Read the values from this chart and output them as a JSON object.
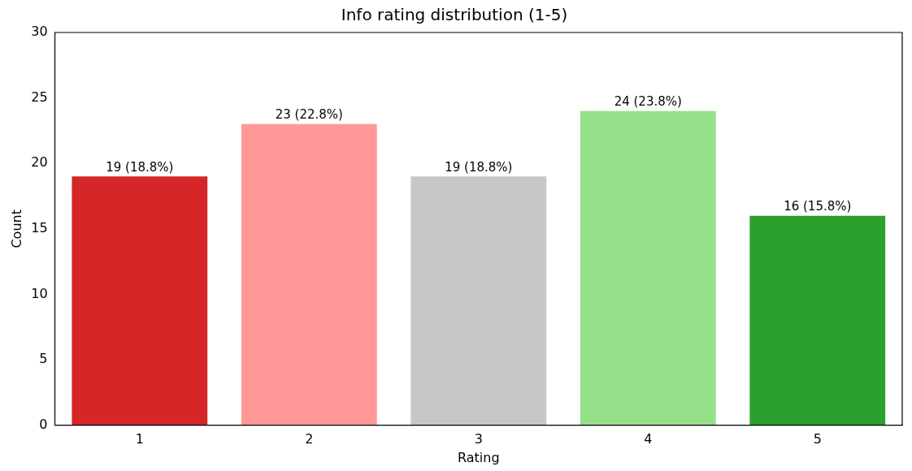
{
  "chart_data": {
    "type": "bar",
    "title": "Info rating distribution (1-5)",
    "xlabel": "Rating",
    "ylabel": "Count",
    "categories": [
      "1",
      "2",
      "3",
      "4",
      "5"
    ],
    "values": [
      19,
      23,
      19,
      24,
      16
    ],
    "colors": [
      "#d62728",
      "#ff9896",
      "#c7c7c7",
      "#98df8a",
      "#2ca02c"
    ],
    "value_labels": [
      "19 (18.8%)",
      "23 (22.8%)",
      "19 (18.8%)",
      "24 (23.8%)",
      "16 (15.8%)"
    ],
    "ylim": [
      0,
      30
    ],
    "yticks": [
      0,
      5,
      10,
      15,
      20,
      25,
      30
    ],
    "grid": false,
    "legend": false
  }
}
